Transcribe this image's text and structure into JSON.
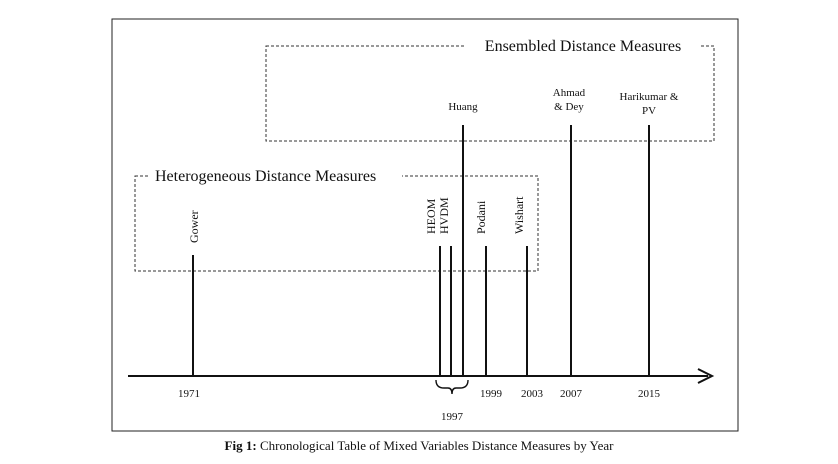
{
  "diagram": {
    "groups": {
      "ensembled": "Ensembled Distance Measures",
      "heterogeneous": "Heterogeneous Distance Measures"
    },
    "measures": {
      "gower": "Gower",
      "heom": "HEOM",
      "hvdm": "HVDM",
      "huang": "Huang",
      "podani": "Podani",
      "wishart": "Wishart",
      "ahmad_line1": "Ahmad",
      "ahmad_line2": "& Dey",
      "harikumar_line1": "Harikumar &",
      "harikumar_line2": "PV"
    },
    "years": {
      "y1971": "1971",
      "y1997": "1997",
      "y1999": "1999",
      "y2003": "2003",
      "y2007": "2007",
      "y2015": "2015"
    }
  },
  "caption": {
    "label": "Fig 1:",
    "text": " Chronological Table of Mixed Variables Distance Measures by Year"
  }
}
